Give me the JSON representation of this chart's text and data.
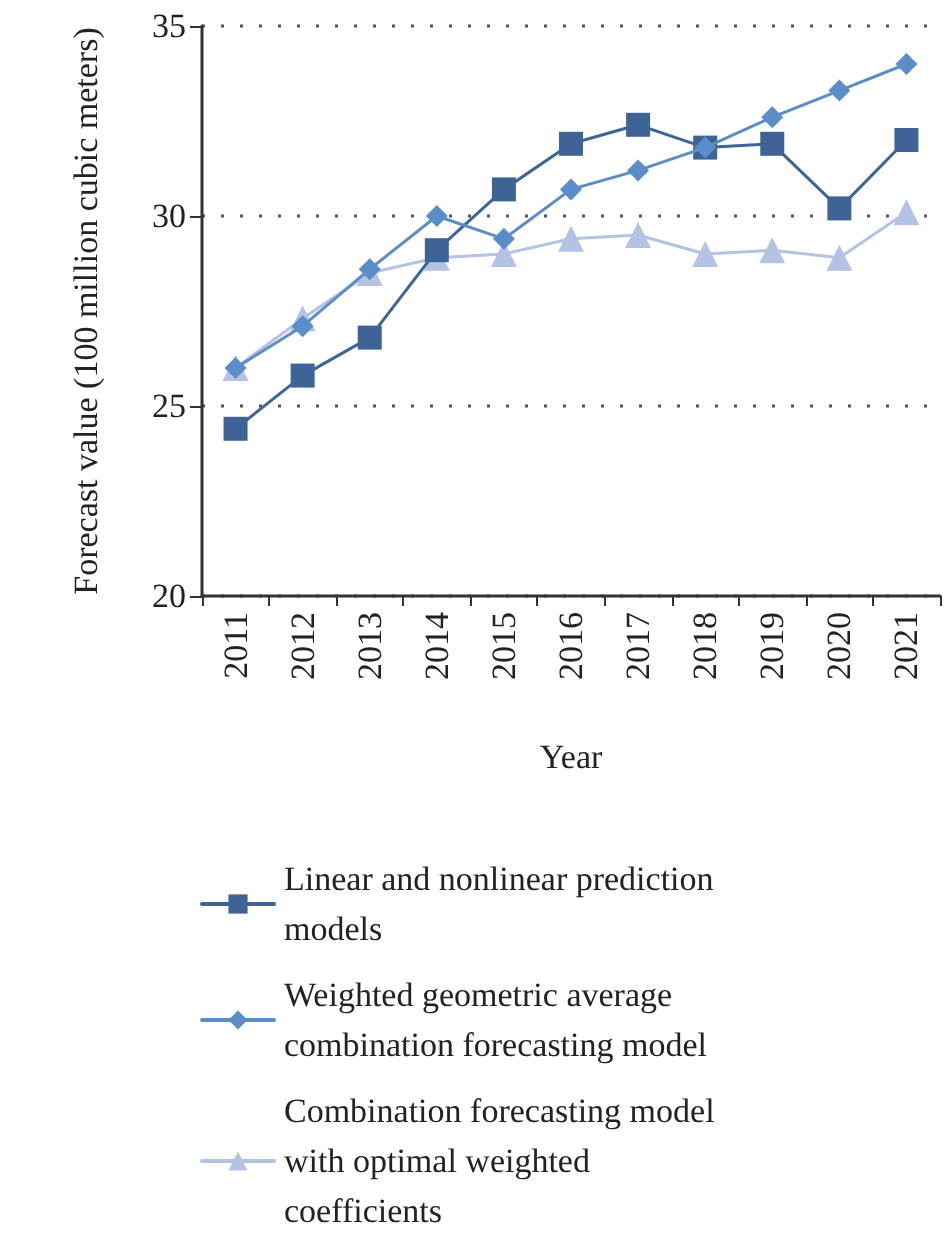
{
  "chart_data": {
    "type": "line",
    "xlabel": "Year",
    "ylabel": "Forecast value (100 million cubic meters)",
    "categories": [
      "2011",
      "2012",
      "2013",
      "2014",
      "2015",
      "2016",
      "2017",
      "2018",
      "2019",
      "2020",
      "2021"
    ],
    "series": [
      {
        "name": "Linear and nonlinear prediction models",
        "color": "#3e6496",
        "marker": "square",
        "values": [
          24.4,
          25.8,
          26.8,
          29.1,
          30.7,
          31.9,
          32.4,
          31.8,
          31.9,
          30.2,
          32.0
        ]
      },
      {
        "name": "Weighted geometric average combination forecasting model",
        "color": "#5b8dc9",
        "marker": "diamond",
        "values": [
          26.0,
          27.1,
          28.6,
          30.0,
          29.4,
          30.7,
          31.2,
          31.8,
          32.6,
          33.3,
          34.0
        ]
      },
      {
        "name": "Combination forecasting model with optimal weighted coefficients",
        "color": "#b4c3e3",
        "marker": "triangle",
        "values": [
          26.0,
          27.3,
          28.5,
          28.9,
          29.0,
          29.4,
          29.5,
          29.0,
          29.1,
          28.9,
          30.1
        ]
      }
    ],
    "ylim": [
      20,
      35
    ],
    "yticks": [
      20,
      25,
      30,
      35
    ],
    "grid": "y",
    "legend": "bottom",
    "line_style": "solid"
  }
}
